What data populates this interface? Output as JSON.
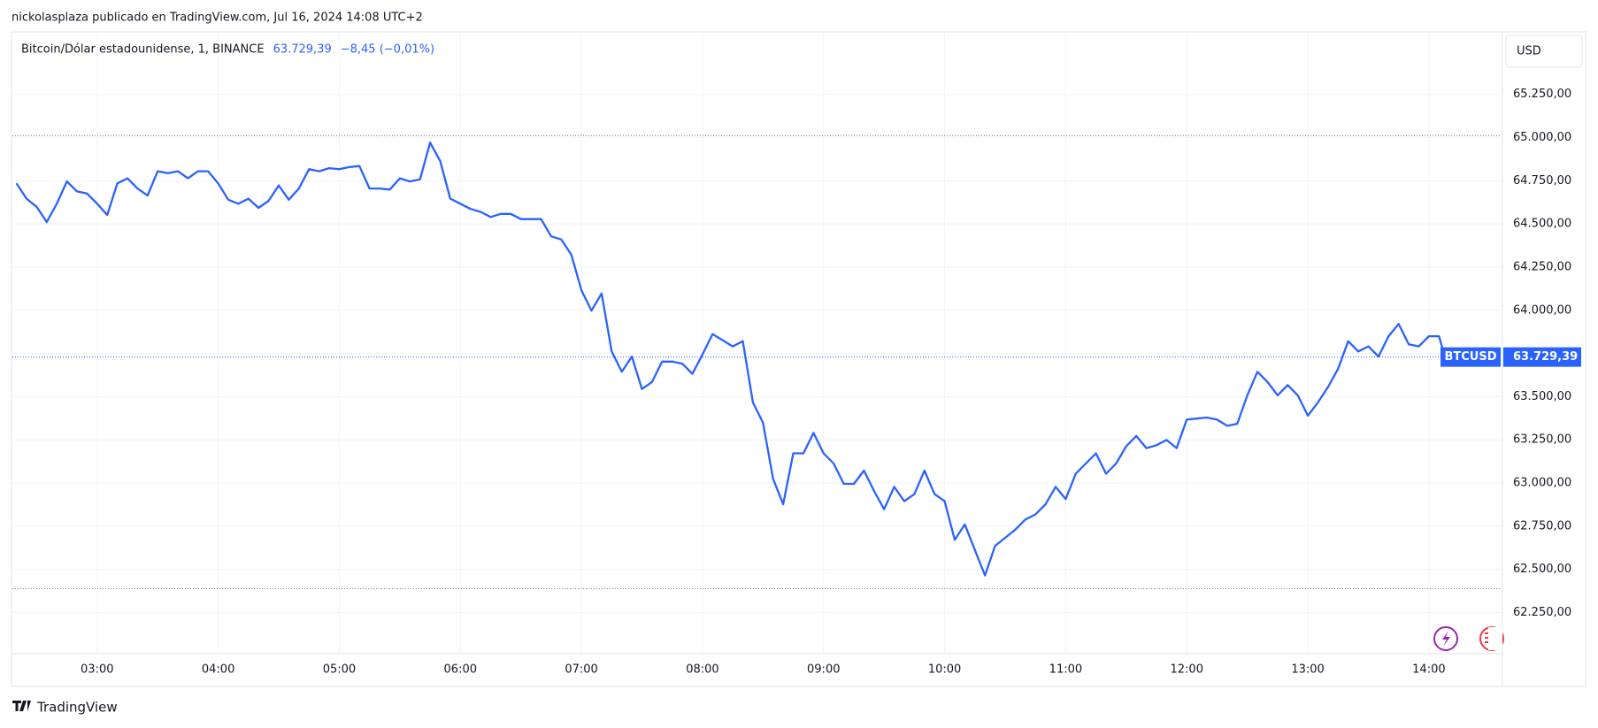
{
  "header": "nickolasplaza publicado en TradingView.com, Jul 16, 2024 14:08 UTC+2",
  "footer": "TradingView",
  "chart_data": {
    "type": "line",
    "title": "Bitcoin/Dólar estadounidense, 1, BINANCE",
    "last_price": {
      "value": 63729.39,
      "label": "63.729,39"
    },
    "change": {
      "value": -8.45,
      "label": "−8,45 (−0,01%)"
    },
    "currency": "USD",
    "symbol": "BTCUSD",
    "color": "#2962ff",
    "grid": true,
    "reference_lines": [
      65011,
      62388
    ],
    "xlim": [
      138,
      876
    ],
    "xticks": [
      {
        "value": 180,
        "label": "03:00"
      },
      {
        "value": 240,
        "label": "04:00"
      },
      {
        "value": 300,
        "label": "05:00"
      },
      {
        "value": 360,
        "label": "06:00"
      },
      {
        "value": 420,
        "label": "07:00"
      },
      {
        "value": 480,
        "label": "08:00"
      },
      {
        "value": 540,
        "label": "09:00"
      },
      {
        "value": 600,
        "label": "10:00"
      },
      {
        "value": 660,
        "label": "11:00"
      },
      {
        "value": 720,
        "label": "12:00"
      },
      {
        "value": 780,
        "label": "13:00"
      },
      {
        "value": 840,
        "label": "14:00"
      }
    ],
    "ylim": [
      62017,
      65607
    ],
    "yticks": [
      {
        "value": 62250,
        "label": "62.250,00"
      },
      {
        "value": 62500,
        "label": "62.500,00"
      },
      {
        "value": 62750,
        "label": "62.750,00"
      },
      {
        "value": 63000,
        "label": "63.000,00"
      },
      {
        "value": 63250,
        "label": "63.250,00"
      },
      {
        "value": 63500,
        "label": "63.500,00"
      },
      {
        "value": 63750,
        "label": "63.750,00"
      },
      {
        "value": 64000,
        "label": "64.000,00"
      },
      {
        "value": 64250,
        "label": "64.250,00"
      },
      {
        "value": 64500,
        "label": "64.500,00"
      },
      {
        "value": 64750,
        "label": "64.750,00"
      },
      {
        "value": 65000,
        "label": "65.000,00"
      },
      {
        "value": 65250,
        "label": "65.250,00"
      }
    ],
    "x": [
      140,
      145,
      150,
      155,
      160,
      165,
      170,
      175,
      180,
      185,
      190,
      195,
      200,
      205,
      210,
      215,
      220,
      225,
      230,
      235,
      240,
      245,
      250,
      255,
      260,
      265,
      270,
      275,
      280,
      285,
      290,
      295,
      300,
      305,
      310,
      315,
      320,
      325,
      330,
      335,
      340,
      345,
      350,
      355,
      360,
      365,
      370,
      375,
      380,
      385,
      390,
      395,
      400,
      405,
      410,
      415,
      420,
      425,
      430,
      435,
      440,
      445,
      450,
      455,
      460,
      465,
      470,
      475,
      480,
      485,
      490,
      495,
      500,
      505,
      510,
      515,
      520,
      525,
      530,
      535,
      540,
      545,
      550,
      555,
      560,
      565,
      570,
      575,
      580,
      585,
      590,
      595,
      600,
      605,
      610,
      615,
      620,
      625,
      630,
      635,
      640,
      645,
      650,
      655,
      660,
      665,
      670,
      675,
      680,
      685,
      690,
      695,
      700,
      705,
      710,
      715,
      720,
      725,
      730,
      735,
      740,
      745,
      750,
      755,
      760,
      765,
      770,
      775,
      780,
      785,
      790,
      795,
      800,
      805,
      810,
      815,
      820,
      825,
      830,
      835,
      840,
      845,
      848
    ],
    "values": [
      64735,
      64646,
      64599,
      64511,
      64617,
      64746,
      64688,
      64676,
      64617,
      64552,
      64735,
      64764,
      64705,
      64664,
      64805,
      64794,
      64805,
      64764,
      64805,
      64805,
      64735,
      64640,
      64617,
      64646,
      64593,
      64634,
      64723,
      64640,
      64705,
      64817,
      64805,
      64823,
      64817,
      64829,
      64835,
      64705,
      64705,
      64699,
      64764,
      64746,
      64758,
      64971,
      64864,
      64646,
      64617,
      64587,
      64570,
      64540,
      64558,
      64558,
      64528,
      64528,
      64528,
      64428,
      64410,
      64322,
      64116,
      63998,
      64098,
      63762,
      63644,
      63732,
      63544,
      63585,
      63703,
      63703,
      63691,
      63632,
      63744,
      63862,
      63827,
      63791,
      63821,
      63467,
      63349,
      63025,
      62877,
      63172,
      63172,
      63290,
      63172,
      63113,
      62995,
      62995,
      63072,
      62954,
      62848,
      62978,
      62895,
      62936,
      63072,
      62936,
      62895,
      62671,
      62760,
      62612,
      62465,
      62636,
      62683,
      62730,
      62789,
      62818,
      62877,
      62978,
      62907,
      63054,
      63113,
      63172,
      63054,
      63113,
      63213,
      63272,
      63202,
      63219,
      63249,
      63202,
      63367,
      63373,
      63379,
      63367,
      63331,
      63343,
      63508,
      63644,
      63585,
      63508,
      63567,
      63508,
      63390,
      63467,
      63556,
      63662,
      63821,
      63762,
      63791,
      63732,
      63850,
      63921,
      63803,
      63791,
      63850,
      63850,
      63729.39
    ]
  }
}
